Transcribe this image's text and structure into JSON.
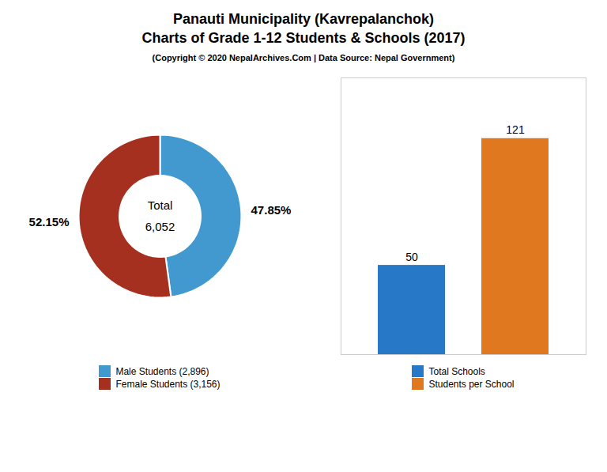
{
  "chart_data": [
    {
      "type": "pie",
      "title": "Panauti Municipality (Kavrepalanchok)",
      "subtitle": "Charts of Grade 1-12 Students & Schools (2017)",
      "caption": "(Copyright © 2020 NepalArchives.Com | Data Source: Nepal Government)",
      "categories": [
        "Male Students (2,896)",
        "Female Students (3,156)"
      ],
      "values": [
        47.85,
        52.15
      ],
      "value_labels": [
        "47.85%",
        "52.15%"
      ],
      "colors": [
        "#4199d0",
        "#a63020"
      ],
      "annotations": [
        "Total",
        "6,052"
      ],
      "data_labels": true,
      "legend": "bottom"
    },
    {
      "type": "bar",
      "categories": [
        "Total Schools",
        "Students per School"
      ],
      "values": [
        50,
        121
      ],
      "colors": [
        "#2878c8",
        "#e07820"
      ],
      "ylim": [
        0,
        155
      ],
      "tick_labels": false,
      "data_labels": true,
      "legend": "bottom"
    }
  ]
}
